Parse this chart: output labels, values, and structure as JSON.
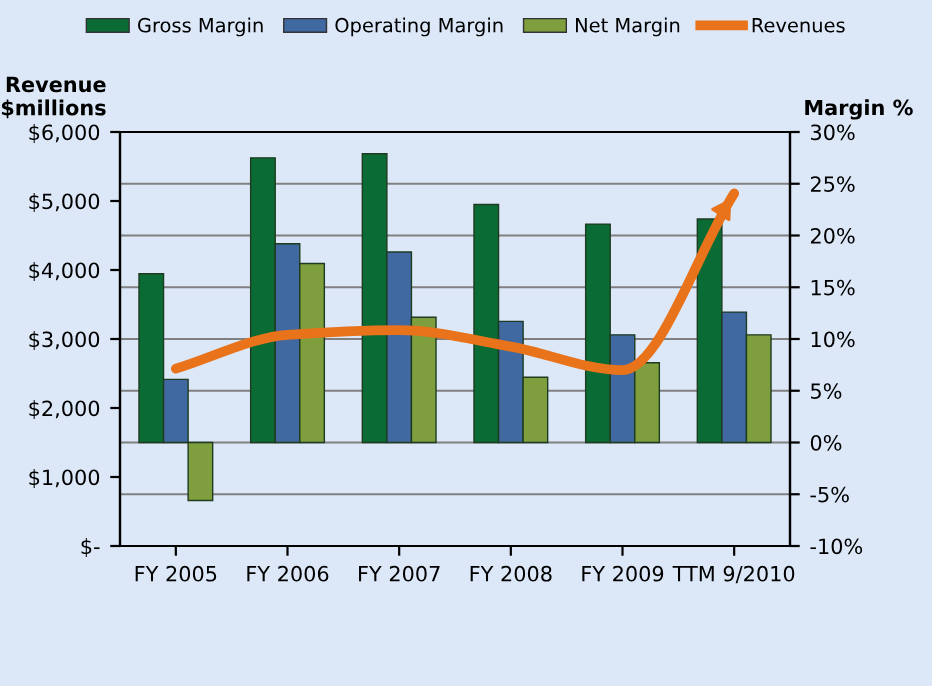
{
  "chart_data": {
    "type": "bar",
    "categories": [
      "FY 2005",
      "FY 2006",
      "FY 2007",
      "FY 2008",
      "FY 2009",
      "TTM 9/2010"
    ],
    "ylabel": "Revenue\n$millions",
    "y2label": "Margin %",
    "series": [
      {
        "name": "Gross Margin",
        "color": "#0b6b35",
        "axis": "y2",
        "values": [
          16.3,
          27.5,
          27.9,
          23.0,
          21.1,
          21.6
        ]
      },
      {
        "name": "Operating Margin",
        "color": "#3f69a0",
        "axis": "y2",
        "values": [
          6.1,
          19.2,
          18.4,
          11.7,
          10.4,
          12.6
        ]
      },
      {
        "name": "Net Margin",
        "color": "#7f9e3e",
        "axis": "y2",
        "values": [
          -5.6,
          17.3,
          12.1,
          6.3,
          7.7,
          10.4
        ]
      },
      {
        "name": "Revenues",
        "type": "line",
        "color": "#e8731a",
        "values": [
          2570,
          3060,
          3130,
          2890,
          2550,
          5110
        ]
      }
    ],
    "ylim": [
      0,
      6000
    ],
    "yticks": [
      {
        "value": 0,
        "label": "$-"
      },
      {
        "value": 1000,
        "label": "$1,000"
      },
      {
        "value": 2000,
        "label": "$2,000"
      },
      {
        "value": 3000,
        "label": "$3,000"
      },
      {
        "value": 4000,
        "label": "$4,000"
      },
      {
        "value": 5000,
        "label": "$5,000"
      },
      {
        "value": 6000,
        "label": "$6,000"
      }
    ],
    "y2lim": [
      -10,
      30
    ],
    "y2ticks": [
      {
        "value": -10,
        "label": "-10%"
      },
      {
        "value": -5,
        "label": "-5%"
      },
      {
        "value": 0,
        "label": "0%"
      },
      {
        "value": 5,
        "label": "5%"
      },
      {
        "value": 10,
        "label": "10%"
      },
      {
        "value": 15,
        "label": "15%"
      },
      {
        "value": 20,
        "label": "20%"
      },
      {
        "value": 25,
        "label": "25%"
      },
      {
        "value": 30,
        "label": "30%"
      }
    ],
    "grid": "y",
    "legend": "top"
  }
}
